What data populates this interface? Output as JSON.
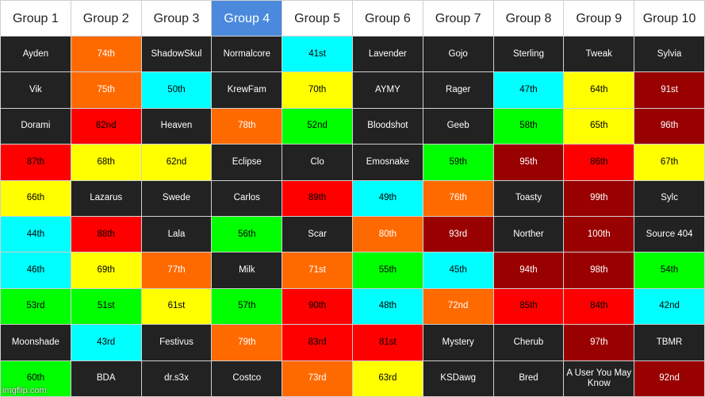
{
  "headers": [
    "Group 1",
    "Group 2",
    "Group 3",
    "Group 4",
    "Group 5",
    "Group 6",
    "Group 7",
    "Group 8",
    "Group 9",
    "Group 10"
  ],
  "highlighted_header": 3,
  "palette": {
    "k": [
      "#222222",
      "#ffffff"
    ],
    "o": [
      "#ff6a00",
      "#ffffff"
    ],
    "c": [
      "#00ffff",
      "#000000"
    ],
    "y": [
      "#ffff00",
      "#000000"
    ],
    "r": [
      "#ff0000",
      "#000000"
    ],
    "g": [
      "#00ff00",
      "#000000"
    ],
    "d": [
      "#990000",
      "#ffffff"
    ]
  },
  "rows": [
    [
      [
        "Ayden",
        "k"
      ],
      [
        "74th",
        "o"
      ],
      [
        "ShadowSkul",
        "k"
      ],
      [
        "Normalcore",
        "k"
      ],
      [
        "41st",
        "c"
      ],
      [
        "Lavender",
        "k"
      ],
      [
        "Gojo",
        "k"
      ],
      [
        "Sterling",
        "k"
      ],
      [
        "Tweak",
        "k"
      ],
      [
        "Sylvia",
        "k"
      ]
    ],
    [
      [
        "Vik",
        "k"
      ],
      [
        "75th",
        "o"
      ],
      [
        "50th",
        "c"
      ],
      [
        "KrewFam",
        "k"
      ],
      [
        "70th",
        "y"
      ],
      [
        "AYMY",
        "k"
      ],
      [
        "Rager",
        "k"
      ],
      [
        "47th",
        "c"
      ],
      [
        "64th",
        "y"
      ],
      [
        "91st",
        "d"
      ]
    ],
    [
      [
        "Dorami",
        "k"
      ],
      [
        "82nd",
        "r"
      ],
      [
        "Heaven",
        "k"
      ],
      [
        "78th",
        "o"
      ],
      [
        "52nd",
        "g"
      ],
      [
        "Bloodshot",
        "k"
      ],
      [
        "Geeb",
        "k"
      ],
      [
        "58th",
        "g"
      ],
      [
        "65th",
        "y"
      ],
      [
        "96th",
        "d"
      ]
    ],
    [
      [
        "87th",
        "r"
      ],
      [
        "68th",
        "y"
      ],
      [
        "62nd",
        "y"
      ],
      [
        "Eclipse",
        "k"
      ],
      [
        "Clo",
        "k"
      ],
      [
        "Emosnake",
        "k"
      ],
      [
        "59th",
        "g"
      ],
      [
        "95th",
        "d"
      ],
      [
        "86th",
        "r"
      ],
      [
        "67th",
        "y"
      ]
    ],
    [
      [
        "66th",
        "y"
      ],
      [
        "Lazarus",
        "k"
      ],
      [
        "Swede",
        "k"
      ],
      [
        "Carlos",
        "k"
      ],
      [
        "89th",
        "r"
      ],
      [
        "49th",
        "c"
      ],
      [
        "76th",
        "o"
      ],
      [
        "Toasty",
        "k"
      ],
      [
        "99th",
        "d"
      ],
      [
        "Sylc",
        "k"
      ]
    ],
    [
      [
        "44th",
        "c"
      ],
      [
        "88th",
        "r"
      ],
      [
        "Lala",
        "k"
      ],
      [
        "56th",
        "g"
      ],
      [
        "Scar",
        "k"
      ],
      [
        "80th",
        "o"
      ],
      [
        "93rd",
        "d"
      ],
      [
        "Norther",
        "k"
      ],
      [
        "100th",
        "d"
      ],
      [
        "Source 404",
        "k"
      ]
    ],
    [
      [
        "46th",
        "c"
      ],
      [
        "69th",
        "y"
      ],
      [
        "77th",
        "o"
      ],
      [
        "Milk",
        "k"
      ],
      [
        "71st",
        "o"
      ],
      [
        "55th",
        "g"
      ],
      [
        "45th",
        "c"
      ],
      [
        "94th",
        "d"
      ],
      [
        "98th",
        "d"
      ],
      [
        "54th",
        "g"
      ]
    ],
    [
      [
        "53rd",
        "g"
      ],
      [
        "51st",
        "g"
      ],
      [
        "61st",
        "y"
      ],
      [
        "57th",
        "g"
      ],
      [
        "90th",
        "r"
      ],
      [
        "48th",
        "c"
      ],
      [
        "72nd",
        "o"
      ],
      [
        "85th",
        "r"
      ],
      [
        "84th",
        "r"
      ],
      [
        "42nd",
        "c"
      ]
    ],
    [
      [
        "Moonshade",
        "k"
      ],
      [
        "43rd",
        "c"
      ],
      [
        "Festivus",
        "k"
      ],
      [
        "79th",
        "o"
      ],
      [
        "83rd",
        "r"
      ],
      [
        "81st",
        "r"
      ],
      [
        "Mystery",
        "k"
      ],
      [
        "Cherub",
        "k"
      ],
      [
        "97th",
        "d"
      ],
      [
        "TBMR",
        "k"
      ]
    ],
    [
      [
        "60th",
        "g"
      ],
      [
        "BDA",
        "k"
      ],
      [
        "dr.s3x",
        "k"
      ],
      [
        "Costco",
        "k"
      ],
      [
        "73rd",
        "o"
      ],
      [
        "63rd",
        "y"
      ],
      [
        "KSDawg",
        "k"
      ],
      [
        "Bred",
        "k"
      ],
      [
        "A User You May Know",
        "k"
      ],
      [
        "92nd",
        "d"
      ]
    ]
  ],
  "watermark": "imgflip.com"
}
